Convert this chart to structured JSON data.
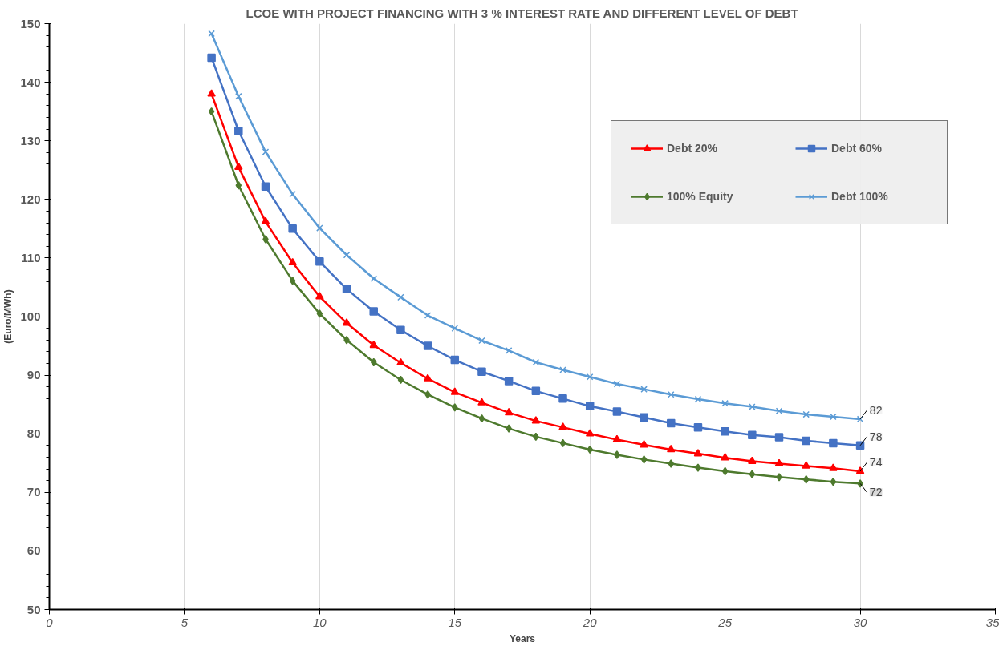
{
  "chart_data": {
    "type": "line",
    "title": "LCOE WITH PROJECT FINANCING WITH 3 % INTEREST RATE AND DIFFERENT LEVEL OF DEBT",
    "xlabel": "Years",
    "ylabel": "(Euro/MWh)",
    "x": [
      6,
      7,
      8,
      9,
      10,
      11,
      12,
      13,
      14,
      15,
      16,
      17,
      18,
      19,
      20,
      21,
      22,
      23,
      24,
      25,
      26,
      27,
      28,
      29,
      30
    ],
    "series": [
      {
        "name": "Debt 20%",
        "color": "#ff0000",
        "marker": "triangle",
        "values": [
          138.0,
          125.5,
          116.2,
          109.2,
          103.4,
          98.9,
          95.1,
          92.1,
          89.4,
          87.1,
          85.3,
          83.6,
          82.2,
          81.1,
          80.0,
          79.0,
          78.1,
          77.3,
          76.6,
          75.9,
          75.3,
          74.9,
          74.5,
          74.1,
          73.6
        ],
        "value_labels": [
          null,
          null,
          null,
          null,
          null,
          null,
          null,
          null,
          null,
          null,
          null,
          null,
          null,
          null,
          null,
          null,
          null,
          null,
          null,
          null,
          null,
          null,
          null,
          null,
          "74"
        ]
      },
      {
        "name": "Debt 60%",
        "color": "#4472c4",
        "marker": "square",
        "values": [
          144.2,
          131.7,
          122.2,
          115.0,
          109.4,
          104.7,
          100.9,
          97.7,
          95.0,
          92.6,
          90.6,
          89.0,
          87.3,
          86.0,
          84.7,
          83.8,
          82.8,
          81.8,
          81.1,
          80.4,
          79.8,
          79.4,
          78.8,
          78.4,
          78.0
        ],
        "value_labels": [
          null,
          null,
          null,
          null,
          null,
          null,
          null,
          null,
          null,
          null,
          null,
          null,
          null,
          null,
          null,
          null,
          null,
          null,
          null,
          null,
          null,
          null,
          null,
          null,
          "78"
        ]
      },
      {
        "name": "100% Equity",
        "color": "#4e7a2e",
        "marker": "diamond",
        "values": [
          135.0,
          122.4,
          113.2,
          106.1,
          100.5,
          96.0,
          92.2,
          89.2,
          86.7,
          84.5,
          82.6,
          80.9,
          79.5,
          78.4,
          77.3,
          76.4,
          75.6,
          74.9,
          74.2,
          73.6,
          73.1,
          72.6,
          72.2,
          71.8,
          71.5
        ],
        "value_labels": [
          null,
          null,
          null,
          null,
          null,
          null,
          null,
          null,
          null,
          null,
          null,
          null,
          null,
          null,
          null,
          null,
          null,
          null,
          null,
          null,
          null,
          null,
          null,
          null,
          "72"
        ]
      },
      {
        "name": "Debt 100%",
        "color": "#5b9bd5",
        "marker": "cross",
        "values": [
          148.3,
          137.6,
          128.1,
          120.9,
          115.1,
          110.5,
          106.5,
          103.3,
          100.2,
          98.0,
          95.9,
          94.2,
          92.2,
          90.9,
          89.7,
          88.5,
          87.6,
          86.7,
          85.9,
          85.2,
          84.6,
          83.9,
          83.3,
          82.9,
          82.5
        ],
        "value_labels": [
          null,
          null,
          null,
          null,
          null,
          null,
          null,
          null,
          null,
          null,
          null,
          null,
          null,
          null,
          null,
          null,
          null,
          null,
          null,
          null,
          null,
          null,
          null,
          null,
          "82"
        ]
      }
    ],
    "xlim": [
      0,
      35
    ],
    "xticks": [
      0,
      5,
      10,
      15,
      20,
      25,
      30,
      35
    ],
    "ylim": [
      50,
      150
    ],
    "yticks": [
      50,
      60,
      70,
      80,
      90,
      100,
      110,
      120,
      130,
      140,
      150
    ],
    "grid": "x",
    "legend": "right",
    "line_style": "solid"
  }
}
